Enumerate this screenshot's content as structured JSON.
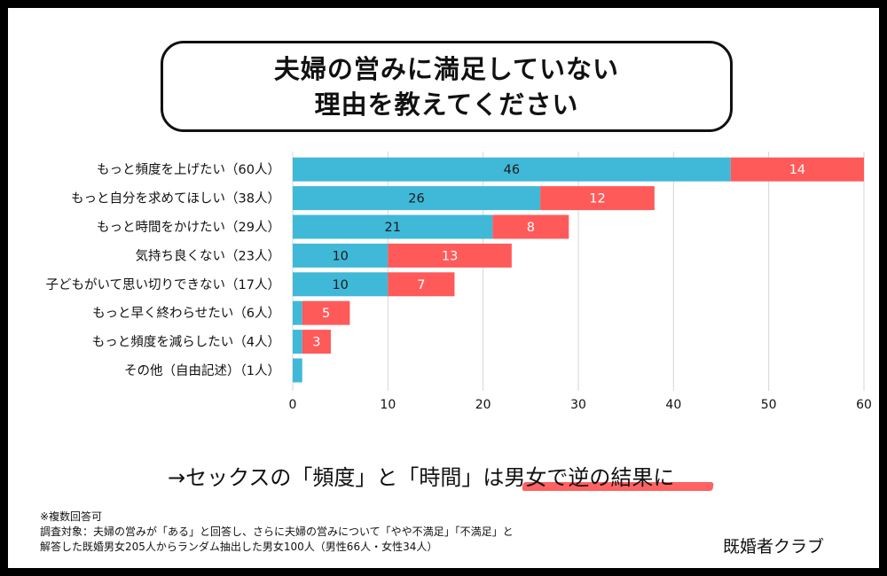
{
  "title": {
    "line1": "夫婦の営みに満足していない",
    "line2": "理由を教えてください"
  },
  "chart_data": {
    "type": "bar",
    "orientation": "horizontal",
    "stacked": true,
    "categories": [
      "もっと頻度を上げたい（60人）",
      "もっと自分を求めてほしい（38人）",
      "もっと時間をかけたい（29人）",
      "気持ち良くない（23人）",
      "子どもがいて思い切りできない（17人）",
      "もっと早く終わらせたい（6人）",
      "もっと頻度を減らしたい（4人）",
      "その他（自由記述）（1人）"
    ],
    "series": [
      {
        "color": "#40b8d8",
        "values": [
          46,
          26,
          21,
          10,
          10,
          1,
          1,
          1
        ]
      },
      {
        "color": "#ff5a5a",
        "values": [
          14,
          12,
          8,
          13,
          7,
          5,
          3,
          0
        ]
      }
    ],
    "data_labels": [
      [
        "46",
        "26",
        "21",
        "10",
        "10",
        "",
        "",
        ""
      ],
      [
        "14",
        "12",
        "8",
        "13",
        "7",
        "5",
        "3",
        ""
      ]
    ],
    "xlim": [
      0,
      60
    ],
    "xticks": [
      "0",
      "10",
      "20",
      "30",
      "40",
      "50",
      "60"
    ],
    "grid": true
  },
  "conclusion": "→セックスの「頻度」と「時間」は男女で逆の結果に",
  "notes": [
    "※複数回答可",
    "調査対象：夫婦の営みが「ある」と回答し、さらに夫婦の営みについて「やや不満足」「不満足」と",
    "解答した既婚男女205人からランダム抽出した男女100人（男性66人・女性34人）"
  ],
  "brand": "既婚者クラブ"
}
